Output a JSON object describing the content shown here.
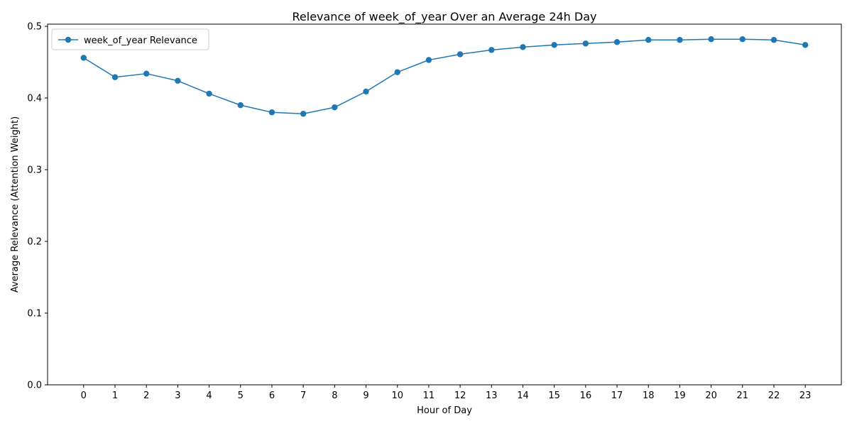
{
  "chart_data": {
    "type": "line",
    "title": "Relevance of week_of_year Over an Average 24h Day",
    "xlabel": "Hour of Day",
    "ylabel": "Average Relevance (Attention Weight)",
    "x": [
      0,
      1,
      2,
      3,
      4,
      5,
      6,
      7,
      8,
      9,
      10,
      11,
      12,
      13,
      14,
      15,
      16,
      17,
      18,
      19,
      20,
      21,
      22,
      23
    ],
    "x_tick_labels": [
      "0",
      "1",
      "2",
      "3",
      "4",
      "5",
      "6",
      "7",
      "8",
      "9",
      "10",
      "11",
      "12",
      "13",
      "14",
      "15",
      "16",
      "17",
      "18",
      "19",
      "20",
      "21",
      "22",
      "23"
    ],
    "y_ticks": [
      0.0,
      0.1,
      0.2,
      0.3,
      0.4,
      0.5
    ],
    "y_tick_labels": [
      "0.0",
      "0.1",
      "0.2",
      "0.3",
      "0.4",
      "0.5"
    ],
    "xlim": [
      -1.15,
      24.15
    ],
    "ylim": [
      0.0,
      0.503
    ],
    "grid": false,
    "legend_position": "top-left",
    "series": [
      {
        "name": "week_of_year Relevance",
        "color": "#1f77b4",
        "marker": "circle",
        "values": [
          0.456,
          0.429,
          0.434,
          0.424,
          0.406,
          0.39,
          0.38,
          0.378,
          0.387,
          0.409,
          0.436,
          0.453,
          0.461,
          0.467,
          0.471,
          0.474,
          0.476,
          0.478,
          0.481,
          0.481,
          0.482,
          0.482,
          0.481,
          0.474
        ]
      }
    ]
  }
}
